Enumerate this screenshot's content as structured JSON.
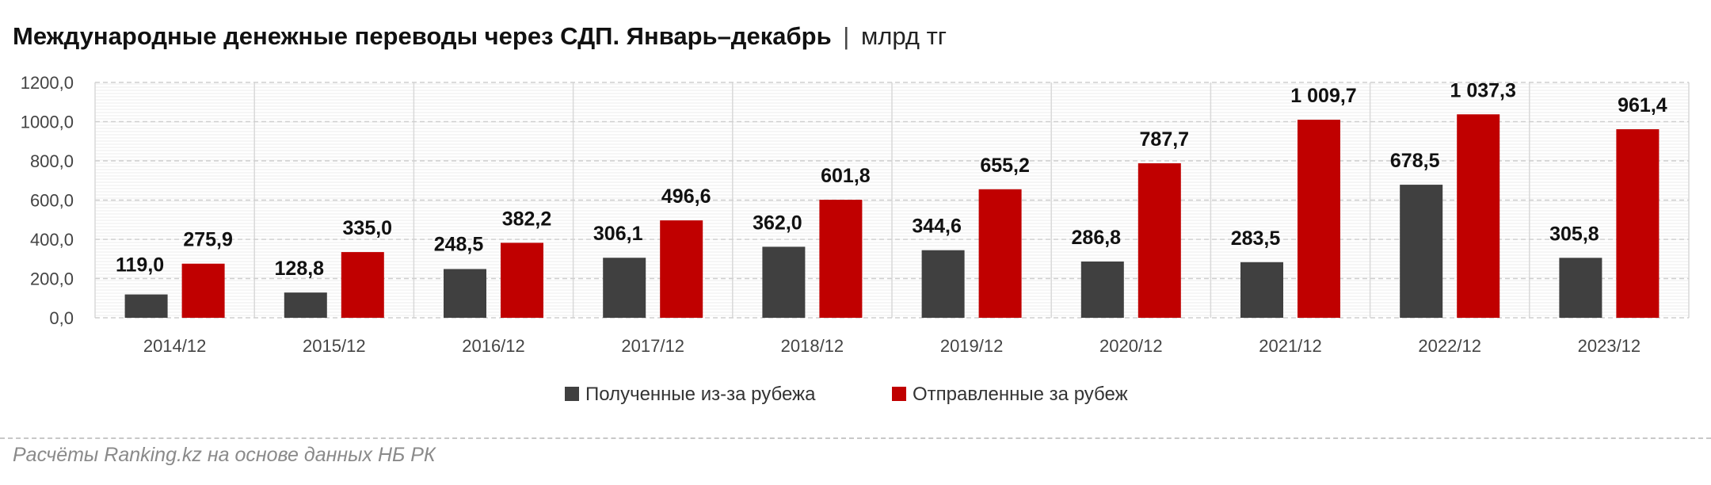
{
  "header": {
    "title": "Международные денежные переводы через СДП. Январь–декабрь",
    "separator": "|",
    "unit": "млрд тг"
  },
  "footer": {
    "source": "Расчёты Ranking.kz на основе данных НБ РК"
  },
  "chart_data": {
    "type": "bar",
    "categories": [
      "2014/12",
      "2015/12",
      "2016/12",
      "2017/12",
      "2018/12",
      "2019/12",
      "2020/12",
      "2021/12",
      "2022/12",
      "2023/12"
    ],
    "series": [
      {
        "name": "Полученные из-за рубежа",
        "color": "#404040",
        "values": [
          119.0,
          128.8,
          248.5,
          306.1,
          362.0,
          344.6,
          286.8,
          283.5,
          678.5,
          305.8
        ],
        "labels": [
          "119,0",
          "128,8",
          "248,5",
          "306,1",
          "362,0",
          "344,6",
          "286,8",
          "283,5",
          "678,5",
          "305,8"
        ]
      },
      {
        "name": "Отправленные за рубеж",
        "color": "#c00000",
        "values": [
          275.9,
          335.0,
          382.2,
          496.6,
          601.8,
          655.2,
          787.7,
          1009.7,
          1037.3,
          961.4
        ],
        "labels": [
          "275,9",
          "335,0",
          "382,2",
          "496,6",
          "601,8",
          "655,2",
          "787,7",
          "1 009,7",
          "1 037,3",
          "961,4"
        ]
      }
    ],
    "ylim": [
      0,
      1200
    ],
    "yticks": [
      0,
      200,
      400,
      600,
      800,
      1000,
      1200
    ],
    "ytick_labels": [
      "0,0",
      "200,0",
      "400,0",
      "600,0",
      "800,0",
      "1000,0",
      "1200,0"
    ],
    "grid": true,
    "legend_position": "bottom"
  }
}
